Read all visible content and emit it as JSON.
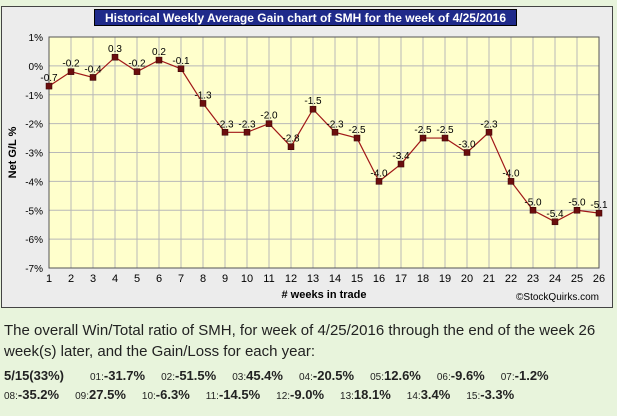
{
  "chart_data": {
    "type": "line",
    "title": "Historical Weekly Average Gain chart of SMH for the week of 4/25/2016",
    "xlabel": "# weeks in trade",
    "ylabel": "Net G/L %",
    "x": [
      1,
      2,
      3,
      4,
      5,
      6,
      7,
      8,
      9,
      10,
      11,
      12,
      13,
      14,
      15,
      16,
      17,
      18,
      19,
      20,
      21,
      22,
      23,
      24,
      25,
      26
    ],
    "series": [
      {
        "name": "",
        "values": [
          -0.7,
          -0.2,
          -0.4,
          0.3,
          -0.2,
          0.2,
          -0.1,
          -1.3,
          -2.3,
          -2.3,
          -2.0,
          -2.8,
          -1.5,
          -2.3,
          -2.5,
          -4.0,
          -3.4,
          -2.5,
          -2.5,
          -3.0,
          -2.3,
          -4.0,
          -5.0,
          -5.4,
          -5.0,
          -5.1
        ],
        "labels": [
          "-0.7",
          "-0.2",
          "-0.4",
          "0.3",
          "-0.2",
          "0.2",
          "-0.1",
          "-1.3",
          "-2.3",
          "-2.3",
          "-2.0",
          "-2.8",
          "-1.5",
          "-2.3",
          "-2.5",
          "-4.0",
          "-3.4",
          "-2.5",
          "-2.5",
          "-3.0",
          "-2.3",
          "-4.0",
          "-5.0",
          "-5.4",
          "-5.0",
          "-5.1"
        ]
      }
    ],
    "yticks": [
      1,
      0,
      -1,
      -2,
      -3,
      -4,
      -5,
      -6,
      -7
    ],
    "ytick_labels": [
      "1%",
      "0%",
      "-1%",
      "-2%",
      "-3%",
      "-4%",
      "-5%",
      "-6%",
      "-7%"
    ],
    "ylim": [
      -7,
      1
    ],
    "xlim": [
      1,
      26
    ],
    "grid": true,
    "legend": "none",
    "watermark": "©StockQuirks.com",
    "colors": {
      "plot_bg": "#ffffcc",
      "grid": "#b8b8b8",
      "line": "#a01818",
      "marker": "#6b0e0e",
      "title_bg": "#1f2a8a"
    }
  },
  "summary": "The overall Win/Total ratio of SMH, for week of 4/25/2016 through the end of the week 26 week(s) later, and the Gain/Loss for each year:",
  "win_ratio": "5/15(33%)",
  "yearly": [
    {
      "year": "01:",
      "value": "-31.7%"
    },
    {
      "year": "02:",
      "value": "-51.5%"
    },
    {
      "year": "03:",
      "value": "45.4%"
    },
    {
      "year": "04:",
      "value": "-20.5%"
    },
    {
      "year": "05:",
      "value": "12.6%"
    },
    {
      "year": "06:",
      "value": "-9.6%"
    },
    {
      "year": "07:",
      "value": "-1.2%"
    },
    {
      "year": "08:",
      "value": "-35.2%"
    },
    {
      "year": "09:",
      "value": "27.5%"
    },
    {
      "year": "10:",
      "value": "-6.3%"
    },
    {
      "year": "11:",
      "value": "-14.5%"
    },
    {
      "year": "12:",
      "value": "-9.0%"
    },
    {
      "year": "13:",
      "value": "18.1%"
    },
    {
      "year": "14:",
      "value": "3.4%"
    },
    {
      "year": "15:",
      "value": "-3.3%"
    }
  ]
}
